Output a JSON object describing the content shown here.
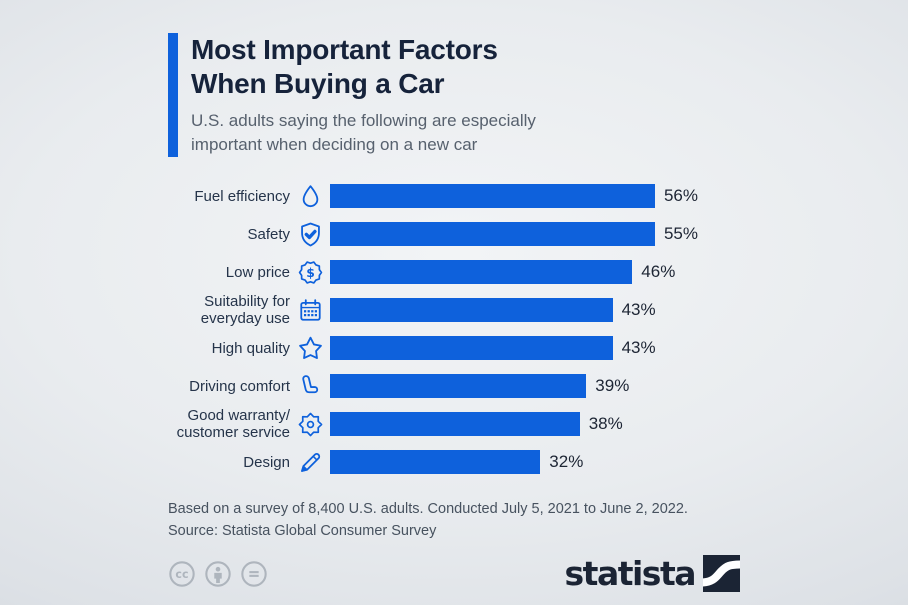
{
  "header": {
    "title_lines": [
      "Most Important Factors",
      "When Buying a Car"
    ],
    "subtitle": "U.S. adults saying the following are especially\nimportant when deciding on a new car"
  },
  "chart_data": {
    "type": "bar",
    "orientation": "horizontal",
    "title": "Most Important Factors When Buying a Car",
    "subtitle": "U.S. adults saying the following are especially important when deciding on a new car",
    "categories": [
      "Fuel efficiency",
      "Safety",
      "Low price",
      "Suitability for everyday use",
      "High quality",
      "Driving comfort",
      "Good warranty/customer service",
      "Design"
    ],
    "display_labels": [
      "Fuel efficiency",
      "Safety",
      "Low price",
      "Suitability for\neveryday use",
      "High quality",
      "Driving comfort",
      "Good warranty/\ncustomer service",
      "Design"
    ],
    "values": [
      56,
      55,
      46,
      43,
      43,
      39,
      38,
      32
    ],
    "value_labels": [
      "56%",
      "55%",
      "46%",
      "43%",
      "43%",
      "39%",
      "38%",
      "32%"
    ],
    "icons": [
      "droplet-icon",
      "shield-check-icon",
      "dollar-badge-icon",
      "calendar-icon",
      "star-icon",
      "car-seat-icon",
      "gear-icon",
      "pencil-icon"
    ],
    "xlim": [
      0,
      56
    ],
    "bar_color": "#0e61dc",
    "grid": false,
    "legend": false
  },
  "footer": {
    "line1": "Based on a survey of 8,400 U.S. adults. Conducted July 5, 2021 to June 2, 2022.",
    "line2": "Source: Statista Global Consumer Survey"
  },
  "branding": {
    "logo_text": "statista",
    "license_icons": [
      "cc-icon",
      "attribution-icon",
      "nd-icon"
    ]
  },
  "colors": {
    "bar": "#0e61dc",
    "accent": "#0e61dc",
    "title": "#16233b",
    "subtitle": "#57616e",
    "footer_text": "#47525f",
    "logo": "#1b2434",
    "license_gray": "#a6adb6"
  }
}
